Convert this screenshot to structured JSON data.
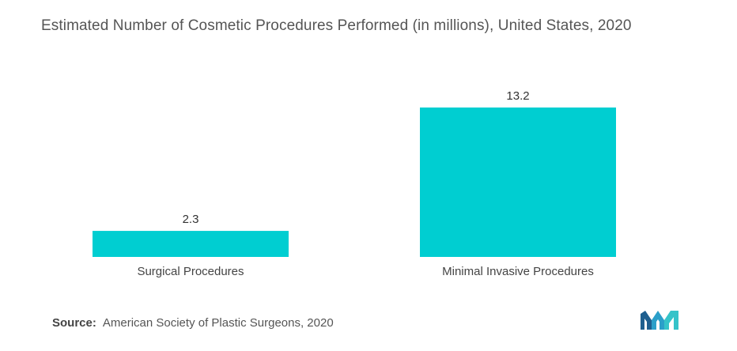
{
  "title": "Estimated Number of Cosmetic Procedures Performed (in millions), United States, 2020",
  "source": {
    "label": "Source:",
    "text": "American Society of Plastic Surgeons, 2020"
  },
  "colors": {
    "bar": "#00CED1",
    "logo": "#2b9fc9"
  },
  "logo_icon": "mordor-intelligence-logo-icon",
  "chart_data": {
    "type": "bar",
    "title": "Estimated Number of Cosmetic Procedures Performed (in millions), United States, 2020",
    "categories": [
      "Surgical Procedures",
      "Minimal Invasive Procedures"
    ],
    "values": [
      2.3,
      13.2
    ],
    "value_labels": [
      "2.3",
      "13.2"
    ],
    "xlabel": "",
    "ylabel": "",
    "ylim": [
      0,
      13.2
    ],
    "grid": false,
    "legend": "none"
  }
}
